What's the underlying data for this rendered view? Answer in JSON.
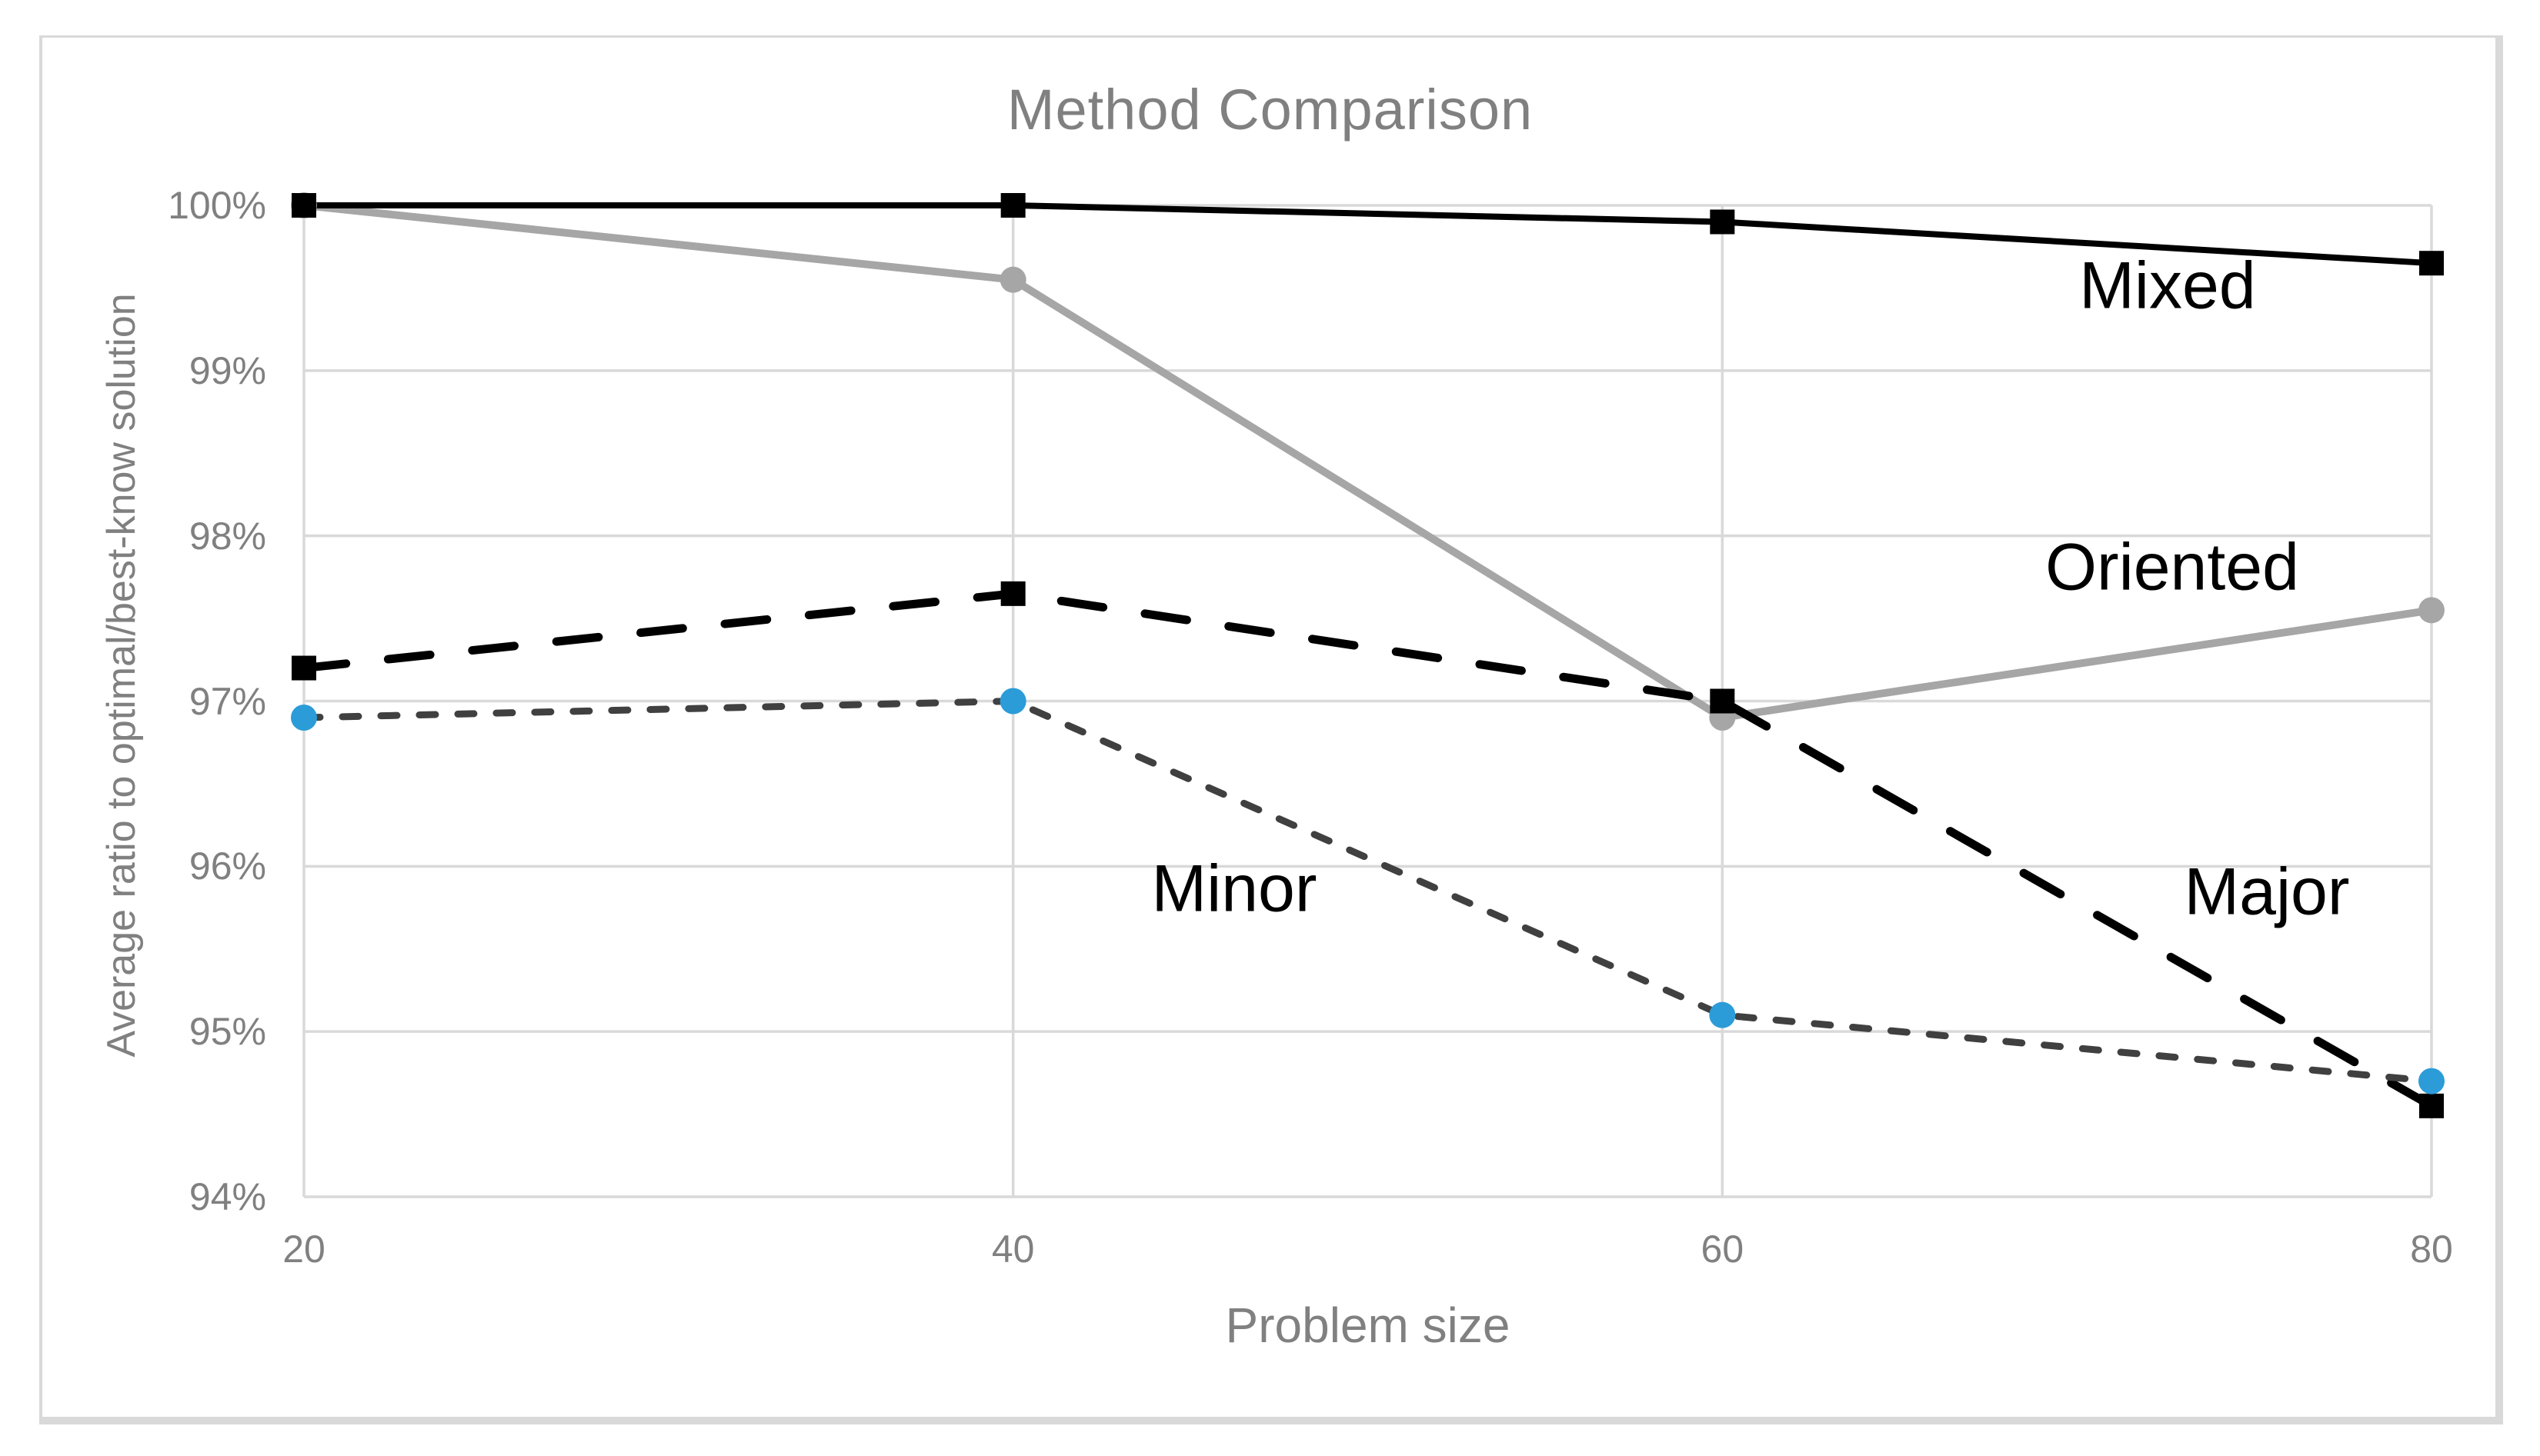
{
  "chart_data": {
    "type": "line",
    "title": "Method Comparison",
    "xlabel": "Problem size",
    "ylabel": "Average ratio to optimal/best-know  solution",
    "x": [
      20,
      40,
      60,
      80
    ],
    "xticks": [
      "20",
      "40",
      "60",
      "80"
    ],
    "yticks": [
      "100%",
      "99%",
      "98%",
      "97%",
      "96%",
      "95%",
      "94%"
    ],
    "xlim": [
      20,
      80
    ],
    "ylim": [
      94,
      100
    ],
    "grid": true,
    "legend": "inline-labels-next-to-lines",
    "colors": {
      "grid": "#d9d9d9",
      "frame": "#d9d9d9",
      "text": "#808080",
      "accent_blue": "#2b9cd8"
    },
    "series": [
      {
        "name": "Oriented",
        "values": [
          100.0,
          99.55,
          96.9,
          97.55
        ],
        "color": "#a6a6a6",
        "style": "solid",
        "stroke_width": 10,
        "marker": "circle",
        "marker_color": "#a6a6a6",
        "label_pos": {
          "x": 2823,
          "y": 738
        }
      },
      {
        "name": "Major",
        "values": [
          97.2,
          97.65,
          97.0,
          94.55
        ],
        "color": "#000000",
        "style": "long-dash",
        "stroke_width": 11,
        "marker": "square",
        "marker_color": "#000000",
        "label_pos": {
          "x": 2946,
          "y": 1160
        }
      },
      {
        "name": "Minor",
        "values": [
          96.9,
          97.0,
          95.1,
          94.7
        ],
        "color": "#404040",
        "style": "short-dash",
        "stroke_width": 9,
        "marker": "circle",
        "marker_color": "#2b9cd8",
        "label_pos": {
          "x": 1604,
          "y": 1156
        }
      },
      {
        "name": "Mixed",
        "values": [
          100.0,
          100.0,
          99.9,
          99.65
        ],
        "color": "#000000",
        "style": "solid",
        "stroke_width": 8,
        "marker": "square",
        "marker_color": "#000000",
        "label_pos": {
          "x": 2817,
          "y": 372
        }
      }
    ]
  }
}
